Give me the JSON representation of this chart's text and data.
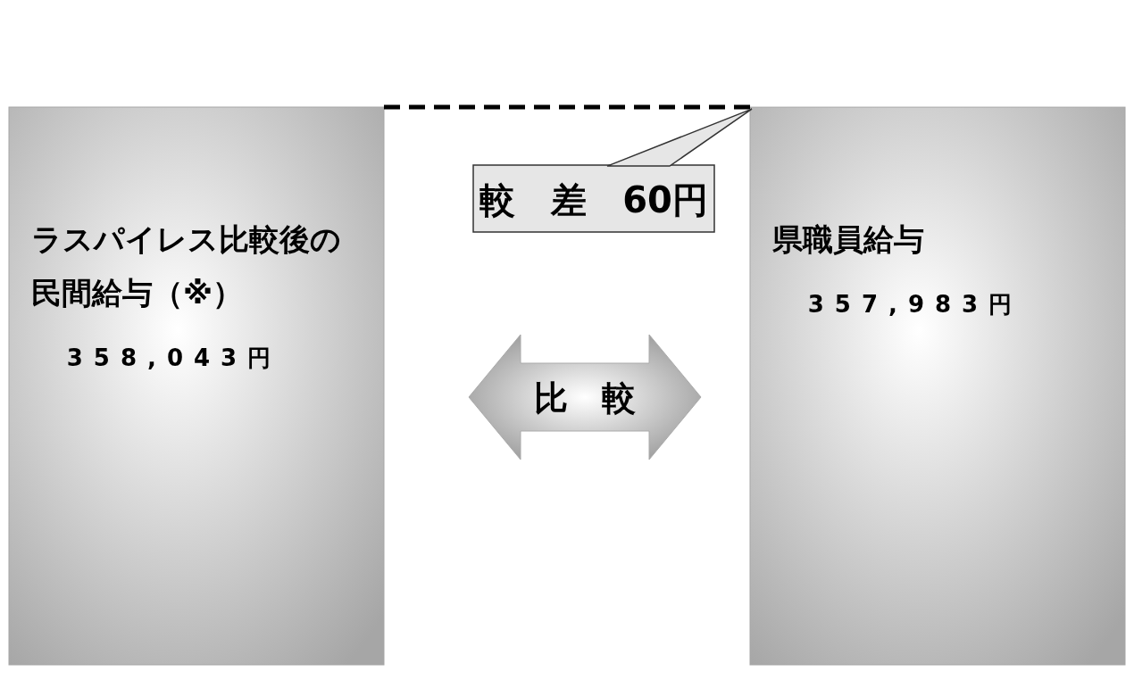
{
  "chart_data": {
    "type": "bar",
    "categories": [
      "ラスパイレス比較後の民間給与（※）",
      "県職員給与"
    ],
    "values": [
      358043,
      357983
    ],
    "colors": [
      "#a6a6a6",
      "#a6a6a6"
    ],
    "value_labels": [
      "358,043円",
      "357,983円"
    ],
    "annotations": [
      "較　差　60円",
      "比　較"
    ]
  }
}
